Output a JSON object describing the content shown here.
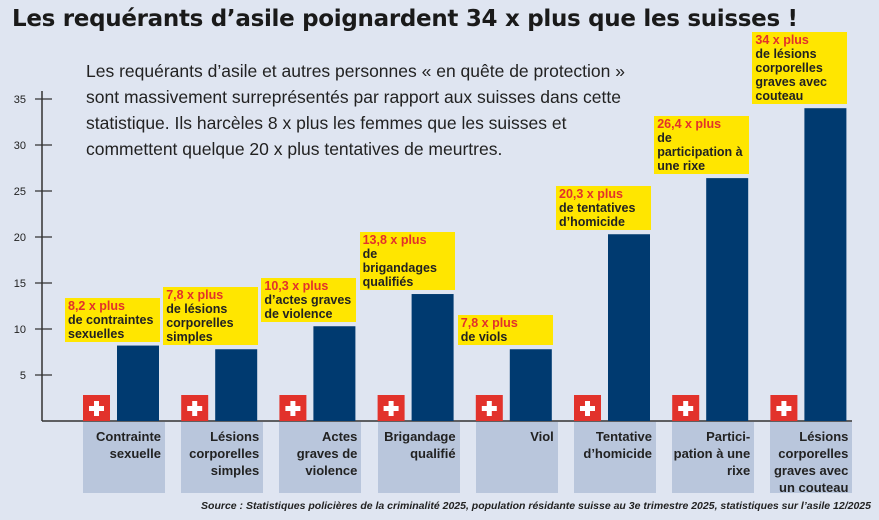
{
  "title": "Les requérants d’asile poignardent 34 x plus que les suisses !",
  "intro": "Les requérants d’asile et autres personnes « en quête de protection » sont massivement surreprésentés par rapport aux suisses dans cette statistique. Ils harcèles 8 x plus les femmes que les suisses et commettent quelque 20 x plus tentatives de meurtres.",
  "source": "Source : Statistiques policières de la criminalité 2025, population résidante suisse au 3e trimestre 2025, statistiques sur l’asile 12/2025",
  "colors": {
    "bar": "#003a70",
    "swiss_flag": "#e2322b",
    "highlight": "#ffe600",
    "label_accent": "#e2322b",
    "category_box": "#b9c6dc",
    "background": "#dfe5f1"
  },
  "chart_data": {
    "type": "bar",
    "ylim": [
      0,
      35
    ],
    "yticks": [
      5,
      10,
      15,
      20,
      25,
      30,
      35
    ],
    "grid": false,
    "baseline_icon": "swiss-flag-icon",
    "categories": [
      "Contrainte sexuelle",
      "Lésions corporelles simples",
      "Actes graves de violence",
      "Brigandage qualifié",
      "Viol",
      "Tentative d’homicide",
      "Partici-pation à une rixe",
      "Lésions corporelles graves avec un couteau"
    ],
    "values": [
      8.2,
      7.8,
      10.3,
      13.8,
      7.8,
      20.3,
      26.4,
      34
    ],
    "annotations": [
      {
        "highlight": "8,2 x plus",
        "text": " de contraintes sexuelles"
      },
      {
        "highlight": "7,8 x plus",
        "text": " de lésions corporelles simples"
      },
      {
        "highlight": "10,3 x plus",
        "text": " d’actes graves de violence"
      },
      {
        "highlight": "13,8 x plus",
        "text": " de brigandages qualifiés"
      },
      {
        "highlight": "7,8 x plus",
        "text": " de viols"
      },
      {
        "highlight": "20,3 x plus",
        "text": " de tentatives d’homicide"
      },
      {
        "highlight": "26,4 x plus",
        "text": " de participation à une rixe"
      },
      {
        "highlight": "34 x plus",
        "text": " de lésions corporelles graves avec couteau"
      }
    ]
  }
}
